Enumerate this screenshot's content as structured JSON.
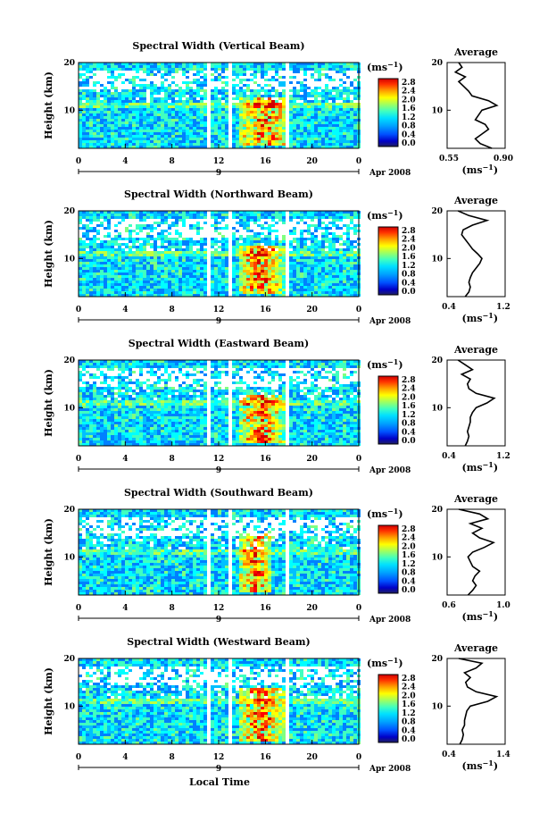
{
  "common": {
    "x_ticks": [
      "0",
      "4",
      "8",
      "12",
      "16",
      "20",
      "0"
    ],
    "x_tick_values": [
      0,
      4,
      8,
      12,
      16,
      20,
      24
    ],
    "date_marker": "9",
    "date_label": "Apr 2008",
    "y_label": "Height (km)",
    "y_ticks": [
      "20",
      "10"
    ],
    "y_tick_values": [
      20,
      10
    ],
    "colorbar_unit": "(ms",
    "colorbar_unit_sup": "−1",
    "colorbar_unit_close": ")",
    "colorbar_ticks": [
      "2.8",
      "2.4",
      "2.0",
      "1.6",
      "1.2",
      "0.8",
      "0.4",
      "0.0"
    ],
    "colorbar_colors": [
      "#202060",
      "#0000c8",
      "#0040ff",
      "#0080ff",
      "#00c0ff",
      "#00ffff",
      "#40ffc0",
      "#80ff80",
      "#c0ff40",
      "#ffff00",
      "#ffc000",
      "#ff8000",
      "#ff4000",
      "#ff0000",
      "#d00000"
    ],
    "avg_title": "Average",
    "avg_xlabel": "(ms",
    "avg_xlabel_sup": "−1",
    "avg_xlabel_close": ")",
    "x_axis_label": "Local Time"
  },
  "chart_data": [
    {
      "type": "heatmap",
      "title": "Spectral Width (Vertical Beam)",
      "xlabel": "",
      "ylabel": "Height (km)",
      "xlim": [
        0,
        24
      ],
      "ylim": [
        2,
        20
      ],
      "data_gaps_hours": [
        [
          5.9,
          6.1
        ],
        [
          10.9,
          11.2
        ],
        [
          12.8,
          13.1
        ],
        [
          17.6,
          17.9
        ]
      ],
      "enhanced_region": {
        "time": [
          13.5,
          18
        ],
        "height": [
          3,
          13
        ]
      },
      "average_profile": {
        "xlim": [
          0.55,
          0.9
        ],
        "xticks": [
          "0.55",
          "0.90"
        ],
        "y_ticks": [
          "20",
          "10"
        ],
        "heights": [
          2,
          3,
          4,
          5,
          6,
          7,
          8,
          9,
          10,
          11,
          12,
          13,
          14,
          15,
          16,
          17,
          18,
          19,
          20
        ],
        "values": [
          0.82,
          0.75,
          0.72,
          0.76,
          0.8,
          0.78,
          0.72,
          0.74,
          0.76,
          0.85,
          0.8,
          0.7,
          0.68,
          0.65,
          0.62,
          0.66,
          0.6,
          0.64,
          0.62
        ]
      }
    },
    {
      "type": "heatmap",
      "title": "Spectral Width (Northward Beam)",
      "xlabel": "",
      "ylabel": "Height (km)",
      "xlim": [
        0,
        24
      ],
      "ylim": [
        2,
        20
      ],
      "data_gaps_hours": [
        [
          5.9,
          6.1
        ],
        [
          10.9,
          11.2
        ],
        [
          12.8,
          13.1
        ],
        [
          17.6,
          17.9
        ]
      ],
      "enhanced_region": {
        "time": [
          13.5,
          17.5
        ],
        "height": [
          3,
          13
        ]
      },
      "average_profile": {
        "xlim": [
          0.4,
          1.2
        ],
        "xticks": [
          "0.4",
          "1.2"
        ],
        "y_ticks": [
          "20",
          "10"
        ],
        "heights": [
          2,
          3,
          4,
          5,
          6,
          7,
          8,
          9,
          10,
          11,
          12,
          13,
          14,
          15,
          16,
          17,
          18,
          19,
          20
        ],
        "values": [
          0.65,
          0.7,
          0.72,
          0.7,
          0.72,
          0.75,
          0.8,
          0.85,
          0.88,
          0.82,
          0.75,
          0.7,
          0.65,
          0.6,
          0.62,
          0.75,
          0.95,
          0.7,
          0.55
        ]
      }
    },
    {
      "type": "heatmap",
      "title": "Spectral Width (Eastward Beam)",
      "xlabel": "",
      "ylabel": "Height (km)",
      "xlim": [
        0,
        24
      ],
      "ylim": [
        2,
        20
      ],
      "data_gaps_hours": [
        [
          5.9,
          6.1
        ],
        [
          10.9,
          11.2
        ],
        [
          12.8,
          13.1
        ],
        [
          17.6,
          17.9
        ]
      ],
      "enhanced_region": {
        "time": [
          13.5,
          17.5
        ],
        "height": [
          3,
          13
        ]
      },
      "average_profile": {
        "xlim": [
          0.4,
          1.2
        ],
        "xticks": [
          "0.4",
          "1.2"
        ],
        "y_ticks": [
          "20",
          "10"
        ],
        "heights": [
          2,
          3,
          4,
          5,
          6,
          7,
          8,
          9,
          10,
          11,
          12,
          13,
          14,
          15,
          16,
          17,
          18,
          19,
          20
        ],
        "values": [
          0.65,
          0.68,
          0.7,
          0.68,
          0.7,
          0.72,
          0.72,
          0.75,
          0.8,
          0.95,
          1.05,
          0.8,
          0.7,
          0.68,
          0.72,
          0.6,
          0.75,
          0.65,
          0.55
        ]
      }
    },
    {
      "type": "heatmap",
      "title": "Spectral Width (Southward Beam)",
      "xlabel": "",
      "ylabel": "Height (km)",
      "xlim": [
        0,
        24
      ],
      "ylim": [
        2,
        20
      ],
      "data_gaps_hours": [
        [
          5.9,
          6.1
        ],
        [
          10.9,
          11.2
        ],
        [
          12.8,
          13.1
        ],
        [
          17.6,
          17.9
        ]
      ],
      "enhanced_region": {
        "time": [
          13.5,
          16.5
        ],
        "height": [
          3,
          15
        ]
      },
      "average_profile": {
        "xlim": [
          0.5,
          1.0
        ],
        "xticks": [
          "0.6",
          "1.0"
        ],
        "y_ticks": [
          "20",
          "10"
        ],
        "heights": [
          2,
          3,
          4,
          5,
          6,
          7,
          8,
          9,
          10,
          11,
          12,
          13,
          14,
          15,
          16,
          17,
          18,
          19,
          20
        ],
        "values": [
          0.68,
          0.72,
          0.75,
          0.72,
          0.74,
          0.78,
          0.72,
          0.7,
          0.68,
          0.72,
          0.82,
          0.9,
          0.78,
          0.72,
          0.8,
          0.7,
          0.85,
          0.78,
          0.6
        ]
      }
    },
    {
      "type": "heatmap",
      "title": "Spectral Width (Westward Beam)",
      "xlabel": "",
      "ylabel": "Height (km)",
      "xlim": [
        0,
        24
      ],
      "ylim": [
        2,
        20
      ],
      "data_gaps_hours": [
        [
          5.9,
          6.1
        ],
        [
          10.9,
          11.2
        ],
        [
          12.8,
          13.1
        ],
        [
          17.6,
          17.9
        ]
      ],
      "enhanced_region": {
        "time": [
          13.5,
          17.5
        ],
        "height": [
          3,
          14
        ]
      },
      "average_profile": {
        "xlim": [
          0.4,
          1.4
        ],
        "xticks": [
          "0.4",
          "1.4"
        ],
        "y_ticks": [
          "20",
          "10"
        ],
        "heights": [
          2,
          3,
          4,
          5,
          6,
          7,
          8,
          9,
          10,
          11,
          12,
          13,
          14,
          15,
          16,
          17,
          18,
          19,
          20
        ],
        "values": [
          0.62,
          0.66,
          0.68,
          0.66,
          0.7,
          0.7,
          0.72,
          0.74,
          0.8,
          1.1,
          1.25,
          0.9,
          0.75,
          0.72,
          0.8,
          0.7,
          0.9,
          1.0,
          0.6
        ]
      }
    }
  ]
}
